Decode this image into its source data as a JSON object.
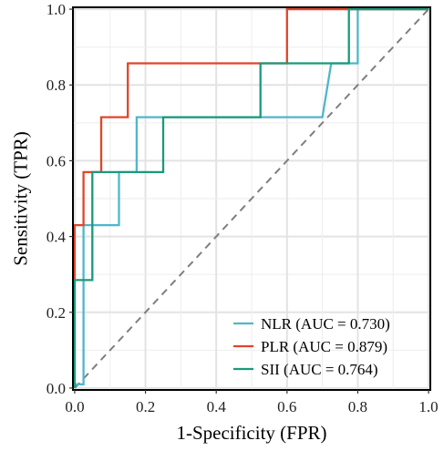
{
  "chart_data": {
    "type": "line",
    "title": "",
    "xlabel": "1-Specificity (FPR)",
    "ylabel": "Sensitivity (TPR)",
    "xlim": [
      0,
      1
    ],
    "ylim": [
      0,
      1
    ],
    "xticks": [
      "0.0",
      "0.2",
      "0.4",
      "0.6",
      "0.8",
      "1.0"
    ],
    "yticks": [
      "0.0",
      "0.2",
      "0.4",
      "0.6",
      "0.8",
      "1.0"
    ],
    "grid": true,
    "legend_position": "bottom-right",
    "reference_line": {
      "style": "dashed",
      "color": "#7f7f7f",
      "x": [
        0,
        1
      ],
      "y": [
        0,
        1
      ]
    },
    "series": [
      {
        "name": "NLR (AUC = 0.730)",
        "color": "#4FB6CC",
        "x": [
          0,
          0,
          0.025,
          0.025,
          0.125,
          0.125,
          0.175,
          0.175,
          0.7,
          0.725,
          0.8,
          0.8,
          1.0
        ],
        "y": [
          0,
          0.01,
          0.01,
          0.43,
          0.43,
          0.57,
          0.57,
          0.715,
          0.715,
          0.857,
          0.857,
          1.0,
          1.0
        ]
      },
      {
        "name": "PLR (AUC = 0.879)",
        "color": "#E0452A",
        "x": [
          0,
          0,
          0.025,
          0.025,
          0.075,
          0.075,
          0.15,
          0.15,
          0.6,
          0.6,
          1.0
        ],
        "y": [
          0,
          0.43,
          0.43,
          0.57,
          0.57,
          0.715,
          0.715,
          0.857,
          0.857,
          1.0,
          1.0
        ]
      },
      {
        "name": "SII (AUC = 0.764)",
        "color": "#1A9A7A",
        "x": [
          0,
          0,
          0.05,
          0.05,
          0.25,
          0.25,
          0.525,
          0.525,
          0.775,
          0.775,
          1.0
        ],
        "y": [
          0,
          0.285,
          0.285,
          0.57,
          0.57,
          0.715,
          0.715,
          0.857,
          0.857,
          1.0,
          1.0
        ]
      }
    ]
  }
}
